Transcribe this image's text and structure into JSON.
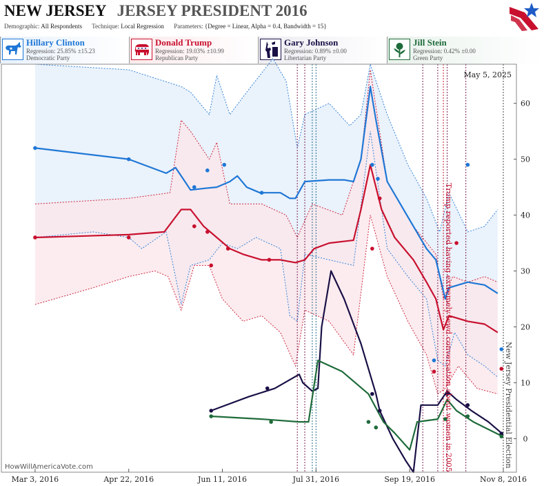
{
  "header": {
    "state": "NEW JERSEY",
    "race": "JERSEY PRESIDENT 2016",
    "params": [
      {
        "label": "Demographic:",
        "value": "All Respondents"
      },
      {
        "label": "Technique:",
        "value": "Local Regression"
      },
      {
        "label": "Parameters:",
        "value": "{Degree = Linear, Alpha = 0.4, Bandwidth = 15}"
      }
    ]
  },
  "candidates": [
    {
      "name": "Hillary Clinton",
      "regression": "Regression: 25.85% ±15.23",
      "party": "Democratic Party",
      "color": "#1e77d6",
      "bg": "#e8f1fb",
      "icon": "donkey-icon"
    },
    {
      "name": "Donald Trump",
      "regression": "Regression: 19.03% ±10.99",
      "party": "Republican Party",
      "color": "#c8102e",
      "bg": "#fbeaec",
      "icon": "elephant-icon"
    },
    {
      "name": "Gary Johnson",
      "regression": "Regression: 0.89% ±0.00",
      "party": "Libertarian Party",
      "color": "#1a1046",
      "bg": "#ececf1",
      "icon": "liberty-torch-icon"
    },
    {
      "name": "Jill Stein",
      "regression": "Regression: 0.42% ±0.00",
      "party": "Green Party",
      "color": "#1e6b3a",
      "bg": "#e9f2ec",
      "icon": "rose-icon"
    }
  ],
  "watermark": "HowWillAmericaVote.com",
  "chart_data": {
    "type": "line",
    "date_label": "May 5, 2025",
    "x_ticks": [
      "2016-03-03",
      "2016-04-22",
      "2016-06-11",
      "2016-07-31",
      "2016-09-19",
      "2016-11-08"
    ],
    "x_tick_labels": [
      "Mar 3, 2016",
      "Apr 22, 2016",
      "Jun 11, 2016",
      "Jul 31, 2016",
      "Sep 19, 2016",
      "Nov 8, 2016"
    ],
    "x_range": [
      "2016-02-14",
      "2016-11-15"
    ],
    "ylim": [
      -6,
      67
    ],
    "y_ticks": [
      0,
      10,
      20,
      30,
      40,
      50,
      60
    ],
    "y_axis_position": "right",
    "annotations": [
      {
        "date": "2016-10-07",
        "text": "Trump reported having extremely lewd conversation about women in 2005",
        "color": "#c8102e"
      },
      {
        "date": "2016-11-08",
        "text": "New Jersey Presidential Election",
        "color": "#444444"
      }
    ],
    "event_lines": [
      {
        "date": "2016-07-21",
        "color": "#7a2050"
      },
      {
        "date": "2016-07-25",
        "color": "#7a2050"
      },
      {
        "date": "2016-07-29",
        "color": "#1e6b8a"
      },
      {
        "date": "2016-07-31",
        "color": "#1e6b8a"
      },
      {
        "date": "2016-09-26",
        "color": "#7a2050"
      },
      {
        "date": "2016-10-04",
        "color": "#7a2050"
      },
      {
        "date": "2016-10-07",
        "color": "#c8102e"
      },
      {
        "date": "2016-10-09",
        "color": "#7a2050"
      },
      {
        "date": "2016-10-19",
        "color": "#7a2050"
      },
      {
        "date": "2016-11-08",
        "color": "#444444"
      }
    ],
    "series": [
      {
        "name": "Hillary Clinton",
        "color": "#1e77d6",
        "band": "#e3eefa",
        "line": [
          [
            "2016-03-03",
            52
          ],
          [
            "2016-04-22",
            50
          ],
          [
            "2016-05-12",
            47.5
          ],
          [
            "2016-05-17",
            48.5
          ],
          [
            "2016-05-20",
            47
          ],
          [
            "2016-05-25",
            44.5
          ],
          [
            "2016-06-02",
            44.8
          ],
          [
            "2016-06-08",
            45
          ],
          [
            "2016-06-15",
            46
          ],
          [
            "2016-06-19",
            47
          ],
          [
            "2016-06-24",
            45
          ],
          [
            "2016-07-01",
            44
          ],
          [
            "2016-07-12",
            44
          ],
          [
            "2016-07-17",
            43
          ],
          [
            "2016-07-20",
            43
          ],
          [
            "2016-07-25",
            46
          ],
          [
            "2016-08-07",
            46.3
          ],
          [
            "2016-08-15",
            46.3
          ],
          [
            "2016-08-20",
            46
          ],
          [
            "2016-08-24",
            50
          ],
          [
            "2016-08-29",
            63
          ],
          [
            "2016-09-01",
            57
          ],
          [
            "2016-09-07",
            46
          ],
          [
            "2016-09-14",
            42
          ],
          [
            "2016-09-21",
            38
          ],
          [
            "2016-09-28",
            34
          ],
          [
            "2016-10-03",
            32
          ],
          [
            "2016-10-08",
            25
          ],
          [
            "2016-10-10",
            27
          ],
          [
            "2016-10-20",
            28
          ],
          [
            "2016-10-29",
            27.5
          ],
          [
            "2016-11-05",
            26
          ]
        ],
        "upper": [
          [
            "2016-03-03",
            67
          ],
          [
            "2016-04-22",
            66
          ],
          [
            "2016-05-20",
            63
          ],
          [
            "2016-05-25",
            62
          ],
          [
            "2016-06-04",
            58
          ],
          [
            "2016-06-08",
            65
          ],
          [
            "2016-06-15",
            58
          ],
          [
            "2016-06-24",
            62
          ],
          [
            "2016-07-08",
            68
          ],
          [
            "2016-07-15",
            64
          ],
          [
            "2016-07-21",
            52
          ],
          [
            "2016-07-25",
            58
          ],
          [
            "2016-08-07",
            60
          ],
          [
            "2016-08-18",
            56
          ],
          [
            "2016-08-24",
            58
          ],
          [
            "2016-08-29",
            67
          ],
          [
            "2016-09-07",
            58
          ],
          [
            "2016-09-18",
            49
          ],
          [
            "2016-09-28",
            43
          ],
          [
            "2016-10-05",
            37
          ],
          [
            "2016-10-10",
            44
          ],
          [
            "2016-10-20",
            37
          ],
          [
            "2016-10-29",
            38
          ],
          [
            "2016-11-05",
            41
          ]
        ],
        "lower": [
          [
            "2016-03-03",
            36
          ],
          [
            "2016-04-03",
            37
          ],
          [
            "2016-04-22",
            36
          ],
          [
            "2016-04-29",
            34
          ],
          [
            "2016-05-12",
            37
          ],
          [
            "2016-05-20",
            24
          ],
          [
            "2016-05-25",
            31
          ],
          [
            "2016-06-04",
            32
          ],
          [
            "2016-06-11",
            35
          ],
          [
            "2016-06-19",
            34
          ],
          [
            "2016-06-29",
            36
          ],
          [
            "2016-07-12",
            34
          ],
          [
            "2016-07-17",
            22
          ],
          [
            "2016-07-21",
            21
          ],
          [
            "2016-07-25",
            33
          ],
          [
            "2016-08-07",
            32
          ],
          [
            "2016-08-20",
            31
          ],
          [
            "2016-08-29",
            55
          ],
          [
            "2016-09-07",
            34
          ],
          [
            "2016-09-18",
            29
          ],
          [
            "2016-09-28",
            25
          ],
          [
            "2016-10-04",
            14
          ],
          [
            "2016-10-08",
            13
          ],
          [
            "2016-10-13",
            19
          ],
          [
            "2016-10-20",
            15
          ],
          [
            "2016-10-29",
            13
          ],
          [
            "2016-11-05",
            11
          ]
        ],
        "points": [
          [
            "2016-03-03",
            52
          ],
          [
            "2016-04-22",
            50
          ],
          [
            "2016-05-27",
            45
          ],
          [
            "2016-06-03",
            48
          ],
          [
            "2016-06-12",
            49
          ],
          [
            "2016-07-02",
            44
          ],
          [
            "2016-08-30",
            49
          ],
          [
            "2016-09-02",
            46.5
          ],
          [
            "2016-10-02",
            14
          ],
          [
            "2016-10-20",
            49
          ],
          [
            "2016-11-07",
            16
          ]
        ]
      },
      {
        "name": "Donald Trump",
        "color": "#c8102e",
        "band": "#fbe6ea",
        "line": [
          [
            "2016-03-03",
            36
          ],
          [
            "2016-04-22",
            36.5
          ],
          [
            "2016-05-11",
            37
          ],
          [
            "2016-05-20",
            41
          ],
          [
            "2016-05-25",
            41
          ],
          [
            "2016-06-01",
            38
          ],
          [
            "2016-06-08",
            36
          ],
          [
            "2016-06-15",
            34
          ],
          [
            "2016-06-22",
            33
          ],
          [
            "2016-07-02",
            32
          ],
          [
            "2016-07-12",
            32
          ],
          [
            "2016-07-20",
            31.5
          ],
          [
            "2016-07-25",
            32
          ],
          [
            "2016-07-30",
            34
          ],
          [
            "2016-08-07",
            35
          ],
          [
            "2016-08-20",
            35.5
          ],
          [
            "2016-08-24",
            41
          ],
          [
            "2016-08-29",
            49
          ],
          [
            "2016-09-04",
            41
          ],
          [
            "2016-09-11",
            36
          ],
          [
            "2016-09-21",
            32
          ],
          [
            "2016-09-28",
            28
          ],
          [
            "2016-10-03",
            25
          ],
          [
            "2016-10-07",
            19.5
          ],
          [
            "2016-10-10",
            22
          ],
          [
            "2016-10-20",
            21
          ],
          [
            "2016-10-29",
            20.5
          ],
          [
            "2016-11-05",
            19
          ]
        ],
        "upper": [
          [
            "2016-03-03",
            42
          ],
          [
            "2016-04-22",
            43
          ],
          [
            "2016-05-14",
            44
          ],
          [
            "2016-05-20",
            57
          ],
          [
            "2016-05-25",
            55
          ],
          [
            "2016-06-04",
            50
          ],
          [
            "2016-06-08",
            53
          ],
          [
            "2016-06-15",
            42
          ],
          [
            "2016-07-02",
            42
          ],
          [
            "2016-07-15",
            40
          ],
          [
            "2016-07-21",
            36
          ],
          [
            "2016-07-29",
            42
          ],
          [
            "2016-08-14",
            40
          ],
          [
            "2016-08-24",
            50
          ],
          [
            "2016-08-29",
            66
          ],
          [
            "2016-09-07",
            46
          ],
          [
            "2016-09-21",
            38
          ],
          [
            "2016-10-03",
            33
          ],
          [
            "2016-10-07",
            25
          ],
          [
            "2016-10-12",
            29
          ],
          [
            "2016-10-20",
            28
          ],
          [
            "2016-10-29",
            29
          ],
          [
            "2016-11-05",
            28
          ]
        ],
        "lower": [
          [
            "2016-03-03",
            24
          ],
          [
            "2016-04-03",
            27
          ],
          [
            "2016-04-22",
            29
          ],
          [
            "2016-05-06",
            30
          ],
          [
            "2016-05-13",
            29
          ],
          [
            "2016-05-20",
            23
          ],
          [
            "2016-05-27",
            31
          ],
          [
            "2016-06-04",
            31
          ],
          [
            "2016-06-11",
            25
          ],
          [
            "2016-06-22",
            21
          ],
          [
            "2016-07-02",
            22
          ],
          [
            "2016-07-12",
            19
          ],
          [
            "2016-07-20",
            13
          ],
          [
            "2016-07-25",
            23
          ],
          [
            "2016-08-07",
            21
          ],
          [
            "2016-08-20",
            15
          ],
          [
            "2016-08-29",
            40
          ],
          [
            "2016-09-07",
            29
          ],
          [
            "2016-09-18",
            21
          ],
          [
            "2016-09-28",
            15
          ],
          [
            "2016-10-04",
            8
          ],
          [
            "2016-10-08",
            9
          ],
          [
            "2016-10-15",
            13
          ],
          [
            "2016-10-25",
            9
          ],
          [
            "2016-11-05",
            8
          ]
        ],
        "points": [
          [
            "2016-03-03",
            36
          ],
          [
            "2016-04-22",
            36
          ],
          [
            "2016-05-27",
            38
          ],
          [
            "2016-06-03",
            37
          ],
          [
            "2016-06-05",
            31
          ],
          [
            "2016-06-14",
            34
          ],
          [
            "2016-07-06",
            32
          ],
          [
            "2016-08-30",
            34
          ],
          [
            "2016-09-03",
            43
          ],
          [
            "2016-10-02",
            12
          ],
          [
            "2016-10-14",
            35
          ],
          [
            "2016-11-07",
            12.5
          ]
        ]
      },
      {
        "name": "Gary Johnson",
        "color": "#1a1046",
        "band": null,
        "line": [
          [
            "2016-06-05",
            5
          ],
          [
            "2016-06-25",
            7.5
          ],
          [
            "2016-07-09",
            9
          ],
          [
            "2016-07-22",
            11.5
          ],
          [
            "2016-07-24",
            10
          ],
          [
            "2016-07-29",
            8.5
          ],
          [
            "2016-08-01",
            9
          ],
          [
            "2016-08-03",
            20
          ],
          [
            "2016-08-08",
            30
          ],
          [
            "2016-08-15",
            25
          ],
          [
            "2016-08-24",
            17
          ],
          [
            "2016-09-01",
            8
          ],
          [
            "2016-09-03",
            5
          ],
          [
            "2016-09-10",
            0
          ],
          [
            "2016-09-17",
            -4
          ],
          [
            "2016-09-21",
            -6
          ],
          [
            "2016-09-23",
            0
          ],
          [
            "2016-09-25",
            6
          ],
          [
            "2016-09-30",
            6
          ],
          [
            "2016-10-04",
            6
          ],
          [
            "2016-10-09",
            8.5
          ],
          [
            "2016-10-14",
            7
          ],
          [
            "2016-10-22",
            5
          ],
          [
            "2016-10-31",
            3
          ],
          [
            "2016-11-07",
            1
          ]
        ],
        "points": [
          [
            "2016-06-05",
            5
          ],
          [
            "2016-07-05",
            9
          ],
          [
            "2016-08-30",
            8
          ],
          [
            "2016-09-03",
            5
          ],
          [
            "2016-10-09",
            8
          ],
          [
            "2016-10-20",
            6
          ],
          [
            "2016-11-07",
            0.9
          ]
        ]
      },
      {
        "name": "Jill Stein",
        "color": "#1e6b3a",
        "band": null,
        "line": [
          [
            "2016-06-05",
            4
          ],
          [
            "2016-07-02",
            3.5
          ],
          [
            "2016-07-22",
            3
          ],
          [
            "2016-07-27",
            3
          ],
          [
            "2016-08-01",
            14
          ],
          [
            "2016-08-14",
            12
          ],
          [
            "2016-08-28",
            8
          ],
          [
            "2016-09-05",
            3
          ],
          [
            "2016-09-11",
            1
          ],
          [
            "2016-09-19",
            -2
          ],
          [
            "2016-09-23",
            3
          ],
          [
            "2016-10-04",
            3.5
          ],
          [
            "2016-10-09",
            7
          ],
          [
            "2016-10-14",
            5
          ],
          [
            "2016-10-23",
            3
          ],
          [
            "2016-11-07",
            0.5
          ]
        ],
        "points": [
          [
            "2016-06-05",
            4
          ],
          [
            "2016-07-07",
            3
          ],
          [
            "2016-08-28",
            3
          ],
          [
            "2016-09-01",
            2
          ],
          [
            "2016-10-08",
            3.5
          ],
          [
            "2016-10-20",
            4
          ],
          [
            "2016-11-07",
            0.4
          ]
        ]
      }
    ]
  }
}
